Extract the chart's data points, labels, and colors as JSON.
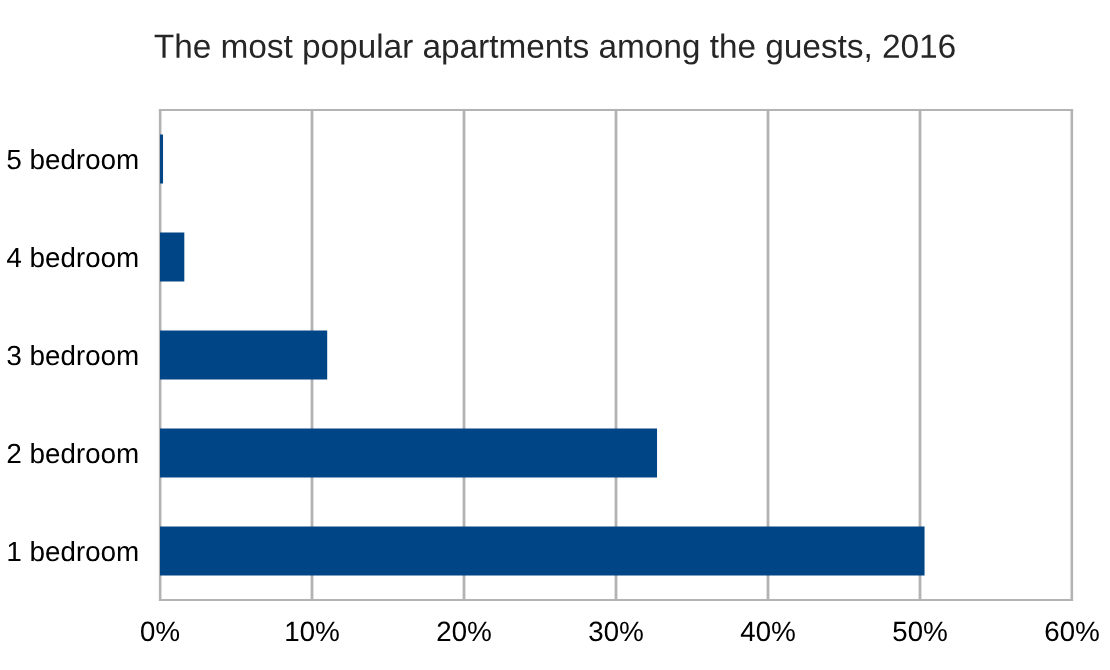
{
  "chart_data": {
    "type": "bar",
    "orientation": "horizontal",
    "title": "The most popular apartments among the guests, 2016",
    "categories": [
      "5 bedroom",
      "4 bedroom",
      "3 bedroom",
      "2 bedroom",
      "1 bedroom"
    ],
    "values": [
      0.2,
      1.6,
      11.0,
      32.7,
      50.3
    ],
    "color": "#004586",
    "xlim": [
      0,
      60
    ],
    "xticks": [
      {
        "value": 0,
        "label": "0%"
      },
      {
        "value": 10,
        "label": "10%"
      },
      {
        "value": 20,
        "label": "20%"
      },
      {
        "value": 30,
        "label": "30%"
      },
      {
        "value": 40,
        "label": "40%"
      },
      {
        "value": 50,
        "label": "50%"
      },
      {
        "value": 60,
        "label": "60%"
      }
    ],
    "grid": "x",
    "legend": false
  }
}
